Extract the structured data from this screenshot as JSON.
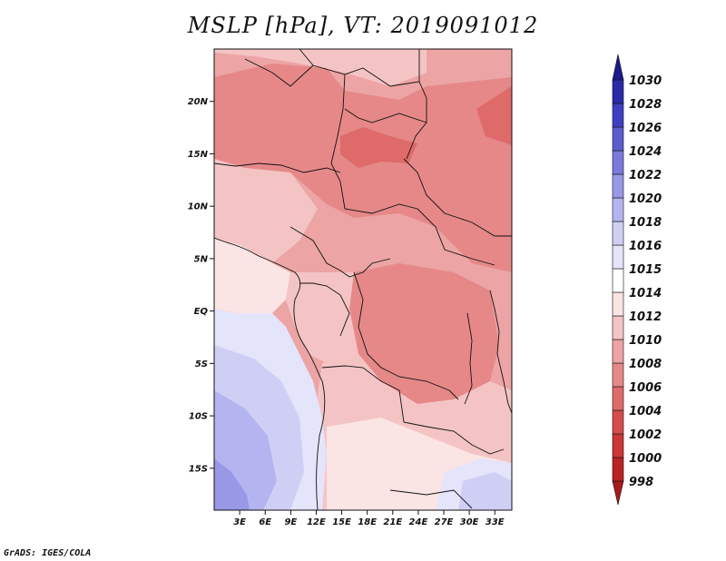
{
  "title": "MSLP [hPa], VT: 2019091012",
  "credit": "GrADS: IGES/COLA",
  "map": {
    "variable": "MSLP",
    "units": "hPa",
    "valid_time": "2019091012",
    "lon_range": [
      0,
      35
    ],
    "lat_range": [
      -19,
      25
    ],
    "lat_ticks": [
      {
        "label": "20N",
        "lat": 20
      },
      {
        "label": "15N",
        "lat": 15
      },
      {
        "label": "10N",
        "lat": 10
      },
      {
        "label": "5N",
        "lat": 5
      },
      {
        "label": "EQ",
        "lat": 0
      },
      {
        "label": "5S",
        "lat": -5
      },
      {
        "label": "10S",
        "lat": -10
      },
      {
        "label": "15S",
        "lat": -15
      }
    ],
    "lon_ticks": [
      {
        "label": "3E",
        "lon": 3
      },
      {
        "label": "6E",
        "lon": 6
      },
      {
        "label": "9E",
        "lon": 9
      },
      {
        "label": "12E",
        "lon": 12
      },
      {
        "label": "15E",
        "lon": 15
      },
      {
        "label": "18E",
        "lon": 18
      },
      {
        "label": "21E",
        "lon": 21
      },
      {
        "label": "24E",
        "lon": 24
      },
      {
        "label": "27E",
        "lon": 27
      },
      {
        "label": "30E",
        "lon": 30
      },
      {
        "label": "33E",
        "lon": 33
      }
    ]
  },
  "colorbar": {
    "levels": [
      "998",
      "1000",
      "1002",
      "1004",
      "1006",
      "1008",
      "1010",
      "1012",
      "1014",
      "1015",
      "1016",
      "1018",
      "1020",
      "1022",
      "1024",
      "1026",
      "1028",
      "1030"
    ],
    "colors": [
      "#a81a1a",
      "#bb2222",
      "#cc3636",
      "#d64c4c",
      "#df6a6a",
      "#e68888",
      "#eda4a4",
      "#f4c4c4",
      "#fbe4e4",
      "#ffffff",
      "#e4e4fa",
      "#cfcff6",
      "#b4b4f0",
      "#9898e6",
      "#7a7adc",
      "#5c5cd0",
      "#3e3ec4",
      "#2a2aa8",
      "#1a1a8a"
    ]
  }
}
